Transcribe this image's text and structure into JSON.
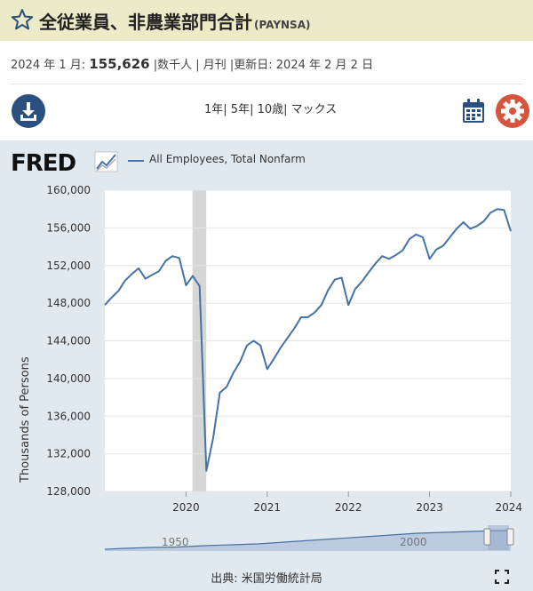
{
  "header": {
    "title": "全従業員、非農業部門合計",
    "series_code": "(PAYNSA)"
  },
  "meta": {
    "period_label": "2024 年 1 月: ",
    "value": "155,626",
    "units_freq": " |数千人 | 月刊 |更新日: 2024 年 2 月 2 日"
  },
  "toolbar": {
    "range_1y": "1年",
    "range_5y": "5年",
    "range_10y": "10歳",
    "range_max": "マックス",
    "separator": "| "
  },
  "legend": {
    "series_name": "All Employees, Total Nonfarm"
  },
  "footer": {
    "source": "出典: 米国労働統計局"
  },
  "colors": {
    "line": "#4572a7",
    "title_bar": "#ecebc8",
    "panel": "#e1e9f0",
    "recession": "#d6d6d6",
    "download": "#2b4f7e",
    "settings": "#d6543c"
  },
  "chart_data": {
    "type": "line",
    "title": "",
    "xlabel": "",
    "ylabel": "Thousands of Persons",
    "xlim": [
      2019.0,
      2024.0
    ],
    "ylim": [
      128000,
      160000
    ],
    "yticks": [
      128000,
      132000,
      136000,
      140000,
      144000,
      148000,
      152000,
      156000,
      160000
    ],
    "ytick_labels": [
      "128,000",
      "132,000",
      "136,000",
      "140,000",
      "144,000",
      "148,000",
      "152,000",
      "156,000",
      "160,000"
    ],
    "xticks": [
      2020,
      2021,
      2022,
      2023,
      2024
    ],
    "xtick_labels": [
      "2020",
      "2021",
      "2022",
      "2023",
      "2024"
    ],
    "grid": true,
    "recession": [
      2020.08,
      2020.25
    ],
    "series": [
      {
        "name": "All Employees, Total Nonfarm",
        "x": [
          2019.0,
          2019.083,
          2019.167,
          2019.25,
          2019.333,
          2019.417,
          2019.5,
          2019.583,
          2019.667,
          2019.75,
          2019.833,
          2019.917,
          2020.0,
          2020.083,
          2020.167,
          2020.25,
          2020.333,
          2020.417,
          2020.5,
          2020.583,
          2020.667,
          2020.75,
          2020.833,
          2020.917,
          2021.0,
          2021.083,
          2021.167,
          2021.25,
          2021.333,
          2021.417,
          2021.5,
          2021.583,
          2021.667,
          2021.75,
          2021.833,
          2021.917,
          2022.0,
          2022.083,
          2022.167,
          2022.25,
          2022.333,
          2022.417,
          2022.5,
          2022.583,
          2022.667,
          2022.75,
          2022.833,
          2022.917,
          2023.0,
          2023.083,
          2023.167,
          2023.25,
          2023.333,
          2023.417,
          2023.5,
          2023.583,
          2023.667,
          2023.75,
          2023.833,
          2023.917,
          2024.0
        ],
        "y": [
          147800,
          148600,
          149300,
          150400,
          151100,
          151700,
          150600,
          151000,
          151400,
          152500,
          153000,
          152800,
          149900,
          150900,
          149800,
          130200,
          133600,
          138500,
          139100,
          140600,
          141800,
          143500,
          144000,
          143500,
          141000,
          142100,
          143300,
          144300,
          145300,
          146500,
          146500,
          147000,
          147800,
          149400,
          150500,
          150700,
          147800,
          149500,
          150300,
          151300,
          152200,
          153000,
          152700,
          153100,
          153600,
          154800,
          155300,
          155000,
          152700,
          153700,
          154100,
          155000,
          155900,
          156600,
          155900,
          156200,
          156700,
          157600,
          158000,
          157900,
          155626
        ]
      }
    ]
  },
  "navigator": {
    "labels": [
      "1950",
      "2000"
    ]
  }
}
